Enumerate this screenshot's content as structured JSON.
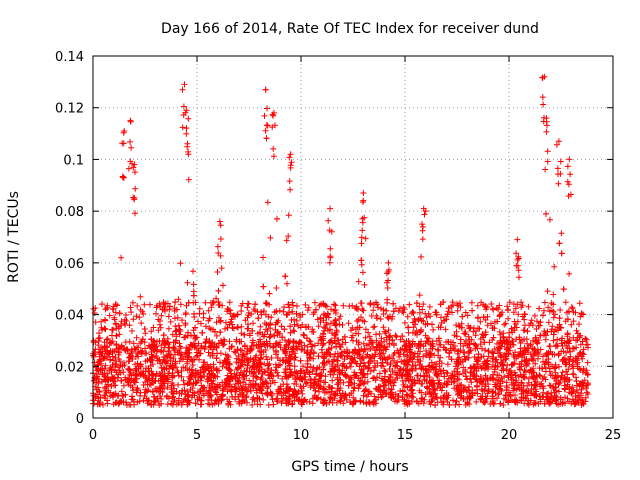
{
  "chart_data": {
    "type": "scatter",
    "title": "Day 166 of 2014, Rate Of TEC Index for receiver dund",
    "xlabel": "GPS time / hours",
    "ylabel": "ROTI / TECUs",
    "xlim": [
      0,
      25
    ],
    "ylim": [
      0,
      0.14
    ],
    "x_ticks": [
      0,
      5,
      10,
      15,
      20,
      25
    ],
    "x_tick_labels": [
      "0",
      "5",
      "10",
      "15",
      "20",
      "25"
    ],
    "y_ticks": [
      0,
      0.02,
      0.04,
      0.06,
      0.08,
      0.1,
      0.12,
      0.14
    ],
    "y_tick_labels": [
      "0",
      "0.02",
      "0.04",
      "0.06",
      "0.08",
      "0.1",
      "0.12",
      "0.14"
    ],
    "grid": true,
    "marker": "+",
    "series_color": "#ff0000",
    "data_range_x": [
      0,
      23.8
    ],
    "dense_band": [
      0.005,
      0.03
    ],
    "peaks": [
      {
        "x": 1.5,
        "y": 0.111
      },
      {
        "x": 1.8,
        "y": 0.115
      },
      {
        "x": 2.0,
        "y": 0.098
      },
      {
        "x": 4.4,
        "y": 0.129
      },
      {
        "x": 4.5,
        "y": 0.119
      },
      {
        "x": 6.1,
        "y": 0.076
      },
      {
        "x": 8.3,
        "y": 0.127
      },
      {
        "x": 8.7,
        "y": 0.118
      },
      {
        "x": 9.5,
        "y": 0.102
      },
      {
        "x": 11.4,
        "y": 0.081
      },
      {
        "x": 13.0,
        "y": 0.087
      },
      {
        "x": 14.2,
        "y": 0.06
      },
      {
        "x": 15.9,
        "y": 0.081
      },
      {
        "x": 20.4,
        "y": 0.069
      },
      {
        "x": 21.7,
        "y": 0.132
      },
      {
        "x": 21.8,
        "y": 0.116
      },
      {
        "x": 22.4,
        "y": 0.107
      },
      {
        "x": 22.9,
        "y": 0.1
      }
    ]
  }
}
